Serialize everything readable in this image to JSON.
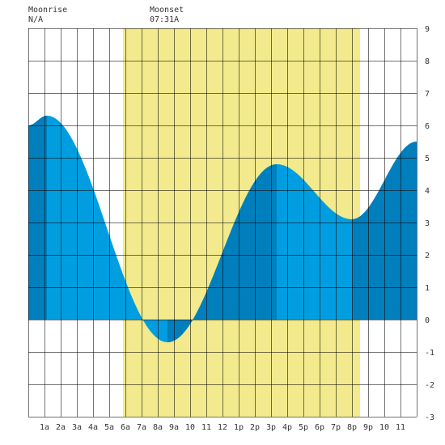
{
  "header": {
    "moonrise_label": "Moonrise",
    "moonrise_value": "N/A",
    "moonset_label": "Moonset",
    "moonset_value": "07:31A"
  },
  "chart_data": {
    "type": "area",
    "title": "",
    "xlabel": "",
    "ylabel": "",
    "x_range_hours": [
      0,
      24
    ],
    "ylim": [
      -3,
      9
    ],
    "y_ticks": [
      -3,
      -2,
      -1,
      0,
      1,
      2,
      3,
      4,
      5,
      6,
      7,
      8,
      9
    ],
    "x_tick_labels": [
      "1a",
      "2a",
      "3a",
      "4a",
      "5a",
      "6a",
      "7a",
      "8a",
      "9a",
      "10",
      "11",
      "12",
      "1p",
      "2p",
      "3p",
      "4p",
      "5p",
      "6p",
      "7p",
      "8p",
      "9p",
      "10",
      "11"
    ],
    "grid": true,
    "daylight_hours": [
      5.85,
      20.5
    ],
    "tide_extremes": [
      {
        "hour": 1.15,
        "height": 6.3,
        "type": "high"
      },
      {
        "hour": 8.6,
        "height": -0.7,
        "type": "low"
      },
      {
        "hour": 15.35,
        "height": 4.8,
        "type": "high"
      },
      {
        "hour": 20.0,
        "height": 3.1,
        "type": "low"
      }
    ],
    "start_height": 6.0,
    "end_height": 5.5,
    "dark_bands_hours": [
      [
        0,
        1.15
      ],
      [
        8.6,
        10.0
      ],
      [
        10.0,
        15.35
      ],
      [
        20.0,
        24.0
      ]
    ],
    "colors": {
      "daylight": "#f2ea8c",
      "tide_light": "#009ee0",
      "tide_dark": "#007fbc",
      "grid": "#000000",
      "text": "#333333"
    }
  }
}
